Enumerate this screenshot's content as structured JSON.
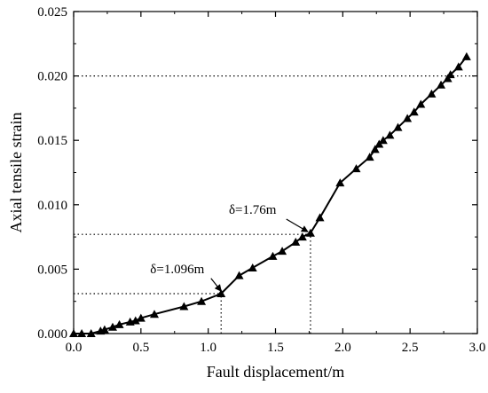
{
  "chart_data": {
    "type": "line",
    "title": "",
    "xlabel": "Fault displacement/m",
    "ylabel": "Axial tensile strain",
    "xlim": [
      0.0,
      3.0
    ],
    "ylim": [
      0.0,
      0.025
    ],
    "x_ticks": [
      0.0,
      0.5,
      1.0,
      1.5,
      2.0,
      2.5,
      3.0
    ],
    "x_tick_labels": [
      "0.0",
      "0.5",
      "1.0",
      "1.5",
      "2.0",
      "2.5",
      "3.0"
    ],
    "y_ticks": [
      0.0,
      0.005,
      0.01,
      0.015,
      0.02,
      0.025
    ],
    "y_tick_labels": [
      "0.000",
      "0.005",
      "0.010",
      "0.015",
      "0.020",
      "0.025"
    ],
    "grid": false,
    "legend": "none",
    "marker": "filled-triangle",
    "line_color": "#000000",
    "series": [
      {
        "x": [
          0.0,
          0.06,
          0.13,
          0.2,
          0.23,
          0.29,
          0.34,
          0.42,
          0.46,
          0.5,
          0.6,
          0.82,
          0.95,
          1.096,
          1.23,
          1.33,
          1.48,
          1.55,
          1.65,
          1.7,
          1.76,
          1.83,
          1.98,
          2.1,
          2.2,
          2.24,
          2.27,
          2.3,
          2.35,
          2.41,
          2.48,
          2.53,
          2.58,
          2.66,
          2.73,
          2.78,
          2.8,
          2.86,
          2.92
        ],
        "y": [
          0.0,
          0.0,
          0.0,
          0.0002,
          0.0003,
          0.0005,
          0.0007,
          0.0009,
          0.001,
          0.0012,
          0.0015,
          0.0021,
          0.0025,
          0.0031,
          0.0045,
          0.0051,
          0.006,
          0.0064,
          0.0071,
          0.0075,
          0.0078,
          0.009,
          0.0117,
          0.0128,
          0.0137,
          0.0143,
          0.0147,
          0.015,
          0.0154,
          0.016,
          0.0167,
          0.0172,
          0.0178,
          0.0186,
          0.0193,
          0.0198,
          0.0201,
          0.0207,
          0.0215
        ]
      }
    ],
    "reference_lines": [
      {
        "axis": "y",
        "value": 0.02,
        "from_x": 0.0,
        "to_x": 3.0
      },
      {
        "axis": "y",
        "value": 0.0031,
        "from_x": 0.0,
        "to_x": 1.096
      },
      {
        "axis": "x",
        "value": 1.096,
        "from_y": 0.0,
        "to_y": 0.0031
      },
      {
        "axis": "y",
        "value": 0.0077,
        "from_x": 0.0,
        "to_x": 1.76
      },
      {
        "axis": "x",
        "value": 1.76,
        "from_y": 0.0,
        "to_y": 0.0077
      }
    ],
    "annotations": [
      {
        "text": "δ=1.096m",
        "label_x": 0.77,
        "label_y": 0.0047,
        "arrow_to_x": 1.096,
        "arrow_to_y": 0.0033
      },
      {
        "text": "δ=1.76m",
        "label_x": 1.33,
        "label_y": 0.0093,
        "arrow_to_x": 1.74,
        "arrow_to_y": 0.0079
      }
    ]
  }
}
